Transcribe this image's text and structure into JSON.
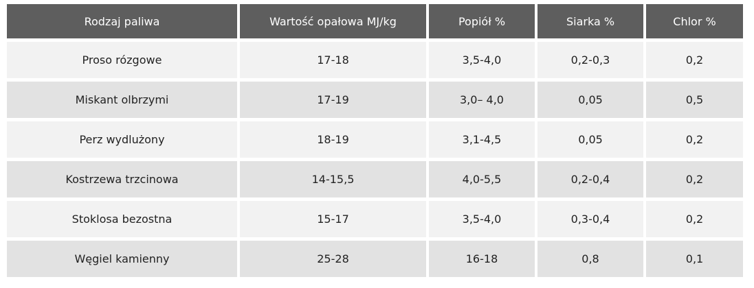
{
  "table": {
    "headers": [
      "Rodzaj paliwa",
      "Wartość opałowa MJ/kg",
      "Popiół %",
      "Siarka %",
      "Chlor %"
    ],
    "rows": [
      [
        "Proso rózgowe",
        "17-18",
        "3,5-4,0",
        "0,2-0,3",
        "0,2"
      ],
      [
        "Miskant olbrzymi",
        "17-19",
        "3,0– 4,0",
        "0,05",
        "0,5"
      ],
      [
        "Perz wydlużony",
        "18-19",
        "3,1-4,5",
        "0,05",
        "0,2"
      ],
      [
        "Kostrzewa trzcinowa",
        "14-15,5",
        "4,0-5,5",
        "0,2-0,4",
        "0,2"
      ],
      [
        "Stoklosa bezostna",
        "15-17",
        "3,5-4,0",
        "0,3-0,4",
        "0,2"
      ],
      [
        "Węgiel kamienny",
        "25-28",
        "16-18",
        "0,8",
        "0,1"
      ]
    ]
  },
  "colors": {
    "header_bg": "#5e5e5e",
    "row_light": "#f2f2f2",
    "row_dark": "#e2e2e2"
  }
}
